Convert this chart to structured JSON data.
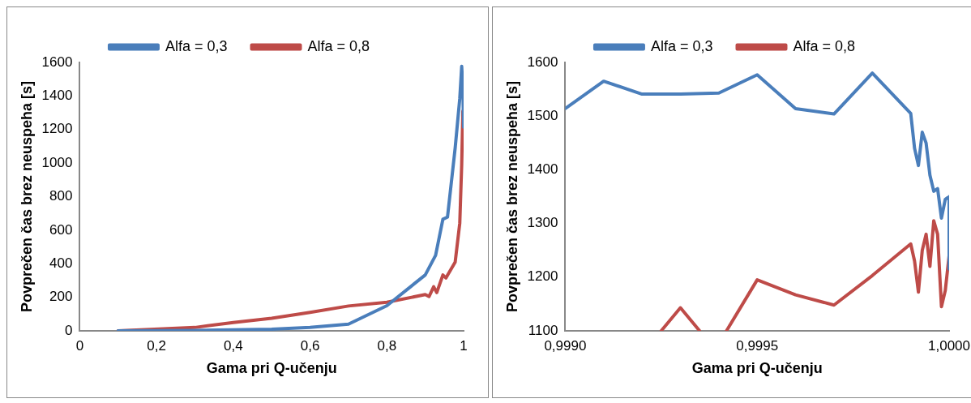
{
  "chart_data": [
    {
      "type": "line",
      "xlabel": "Gama pri Q-učenju",
      "ylabel": "Povprečen čas brez neuspeha [s]",
      "xlim": [
        0,
        1
      ],
      "xticks": [
        0,
        {
          "value": 0.2,
          "label": "0,2"
        },
        {
          "value": 0.4,
          "label": "0,4"
        },
        {
          "value": 0.6,
          "label": "0,6"
        },
        {
          "value": 0.8,
          "label": "0,8"
        },
        1
      ],
      "ylim": [
        0,
        1600
      ],
      "yticks": [
        0,
        200,
        400,
        600,
        800,
        1000,
        1200,
        1400,
        1600
      ],
      "grid": false,
      "legend": "top",
      "series": [
        {
          "name": "Alfa = 0,3",
          "color": "#4a7ebb",
          "x": [
            0.1,
            0.3,
            0.5,
            0.6,
            0.7,
            0.8,
            0.9,
            0.927,
            0.946,
            0.958,
            0.978,
            0.99,
            0.995,
            0.998,
            1
          ],
          "values": [
            0,
            2,
            10,
            20,
            40,
            150,
            333,
            450,
            665,
            678,
            1090,
            1385,
            1577,
            1450,
            1215
          ]
        },
        {
          "name": "Alfa = 0,8",
          "color": "#be4b48",
          "x": [
            0.1,
            0.3,
            0.4,
            0.5,
            0.6,
            0.7,
            0.8,
            0.9,
            0.91,
            0.922,
            0.93,
            0.946,
            0.954,
            0.978,
            0.99,
            0.995,
            0.998,
            1
          ],
          "values": [
            0,
            20,
            50,
            75,
            110,
            148,
            170,
            216,
            205,
            263,
            228,
            333,
            315,
            410,
            642,
            990,
            1310,
            1240
          ]
        }
      ]
    },
    {
      "type": "line",
      "xlabel": "Gama pri Q-učenju",
      "ylabel": "Povprečen čas brez neuspeha [s]",
      "xlim": [
        0.999,
        1
      ],
      "xticks": [
        {
          "value": 0.999,
          "label": "0,9990"
        },
        {
          "value": 0.9995,
          "label": "0,9995"
        },
        {
          "value": 1,
          "label": "1,0000"
        }
      ],
      "ylim": [
        1100,
        1600
      ],
      "yticks": [
        1100,
        1200,
        1300,
        1400,
        1500,
        1600
      ],
      "grid": false,
      "legend": "top",
      "series": [
        {
          "name": "Alfa = 0,3",
          "color": "#4a7ebb",
          "x": [
            0.999,
            0.9991,
            0.9992,
            0.9993,
            0.9994,
            0.9995,
            0.9996,
            0.9997,
            0.9998,
            0.9999,
            0.99991,
            0.99992,
            0.99993,
            0.99994,
            0.99995,
            0.99996,
            0.99997,
            0.99998,
            0.99999,
            1,
            1
          ],
          "values": [
            1514,
            1565,
            1541,
            1541,
            1543,
            1577,
            1514,
            1504,
            1580,
            1505,
            1440,
            1408,
            1470,
            1450,
            1390,
            1360,
            1365,
            1310,
            1345,
            1350,
            1215
          ]
        },
        {
          "name": "Alfa = 0,8",
          "color": "#be4b48",
          "x": [
            0.99925,
            0.9993,
            0.99935,
            0.99938,
            0.99942,
            0.9995,
            0.9996,
            0.9997,
            0.9998,
            0.9999,
            0.99991,
            0.99992,
            0.99993,
            0.99994,
            0.99995,
            0.99996,
            0.99997,
            0.99998,
            0.99999,
            1
          ],
          "values": [
            1100,
            1143,
            1100,
            null,
            1100,
            1195,
            1167,
            1148,
            1203,
            1262,
            1230,
            1172,
            1250,
            1280,
            1220,
            1305,
            1280,
            1145,
            1175,
            1240
          ]
        }
      ]
    }
  ]
}
